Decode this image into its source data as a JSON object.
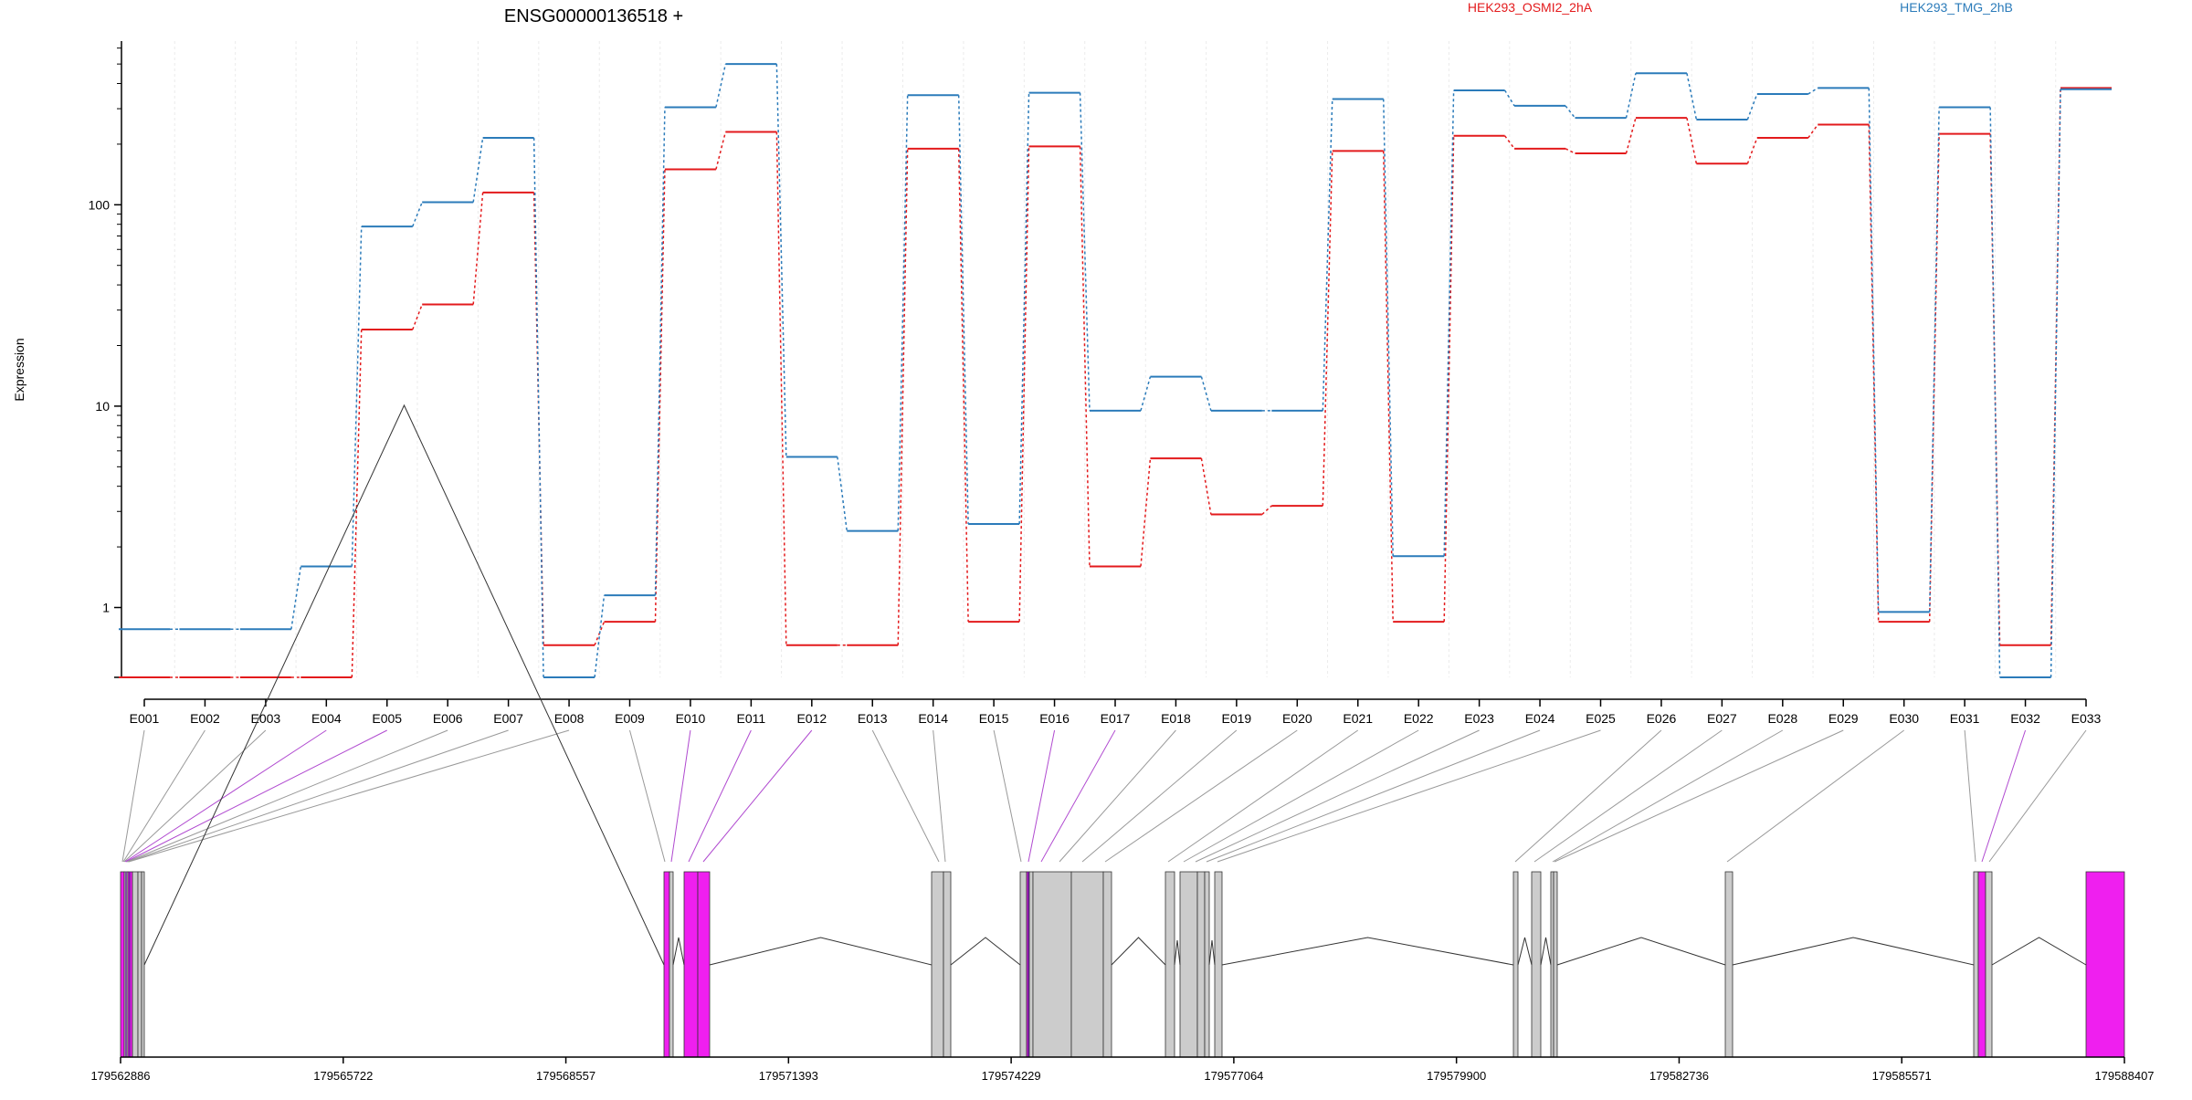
{
  "chart_data": {
    "type": "line",
    "title": "ENSG00000136518 +",
    "ylabel": "Expression",
    "xlabel": "",
    "yscale": "log",
    "ylim": [
      0.45,
      650
    ],
    "yticks": [
      "1",
      "10",
      "100"
    ],
    "grid": true,
    "legend_placement": "top",
    "categories": [
      "E001",
      "E002",
      "E003",
      "E004",
      "E005",
      "E006",
      "E007",
      "E008",
      "E009",
      "E010",
      "E011",
      "E012",
      "E013",
      "E014",
      "E015",
      "E016",
      "E017",
      "E018",
      "E019",
      "E020",
      "E021",
      "E022",
      "E023",
      "E024",
      "E025",
      "E026",
      "E027",
      "E028",
      "E029",
      "E030",
      "E031",
      "E032",
      "E033"
    ],
    "series": [
      {
        "name": "HEK293_OSMI2_2hA",
        "color": "#e31a1c",
        "values": [
          0.45,
          0.45,
          0.45,
          0.45,
          24,
          32,
          115,
          0.65,
          0.85,
          150,
          230,
          0.65,
          0.65,
          190,
          0.85,
          195,
          1.6,
          5.5,
          2.9,
          3.2,
          185,
          0.85,
          220,
          190,
          180,
          270,
          160,
          215,
          250,
          0.85,
          225,
          0.65,
          380
        ]
      },
      {
        "name": "HEK293_TMG_2hB",
        "color": "#2b7bba",
        "values": [
          0.78,
          0.78,
          0.78,
          1.6,
          78,
          103,
          215,
          0.45,
          1.15,
          305,
          500,
          5.6,
          2.4,
          350,
          2.6,
          360,
          9.5,
          14,
          9.5,
          9.5,
          335,
          1.8,
          370,
          310,
          270,
          450,
          265,
          355,
          380,
          0.95,
          305,
          0.45,
          375
        ]
      }
    ],
    "genomic_axis": {
      "ticks": [
        "179562886",
        "179565722",
        "179568557",
        "179571393",
        "179574229",
        "179577064",
        "179579900",
        "179582736",
        "179585571",
        "179588407"
      ]
    },
    "colors": {
      "highlight_exon": "#ef1fef",
      "plain_exon": "#cccccc",
      "connector_plain": "#999999",
      "connector_highlight": "#b04ad0"
    }
  }
}
